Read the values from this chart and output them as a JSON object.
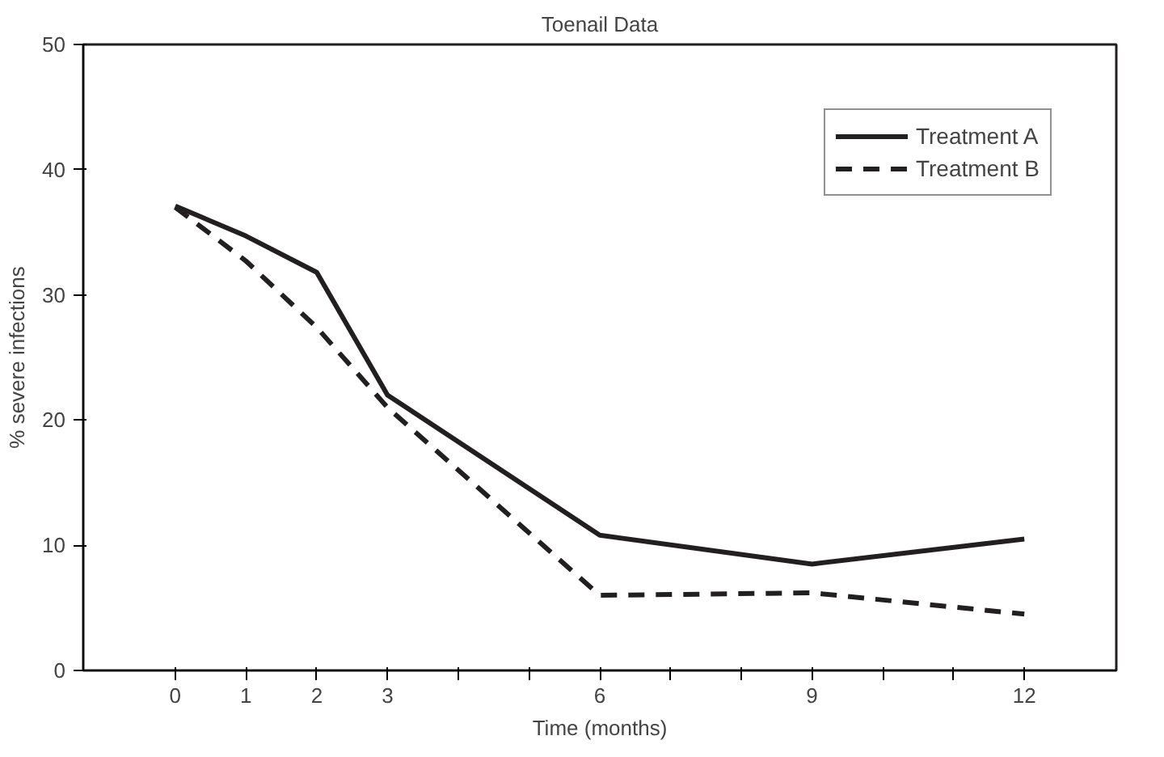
{
  "chart_data": {
    "type": "line",
    "title": "Toenail Data",
    "xlabel": "Time (months)",
    "ylabel": "% severe infections",
    "x": [
      0,
      1,
      2,
      3,
      6,
      9,
      12
    ],
    "series": [
      {
        "name": "Treatment A",
        "color": "#231f20",
        "line_style": "solid",
        "values": [
          37.1,
          34.7,
          31.8,
          22.0,
          10.8,
          8.5,
          10.5
        ]
      },
      {
        "name": "Treatment B",
        "color": "#231f20",
        "line_style": "dashed",
        "values": [
          37.0,
          32.7,
          27.4,
          21.0,
          6.0,
          6.2,
          4.5
        ]
      }
    ],
    "xlim": [
      -1.3,
      13.3
    ],
    "ylim": [
      0,
      50
    ],
    "xticks": [
      0,
      1,
      2,
      3,
      {
        "value": 4,
        "label": null
      },
      {
        "value": 5,
        "label": null
      },
      6,
      {
        "value": 7,
        "label": null
      },
      {
        "value": 8,
        "label": null
      },
      9,
      {
        "value": 10,
        "label": null
      },
      {
        "value": 11,
        "label": null
      },
      12
    ],
    "yticks": [
      0,
      10,
      20,
      30,
      40,
      50
    ],
    "grid": false,
    "legend": "top right",
    "marker": "none"
  }
}
